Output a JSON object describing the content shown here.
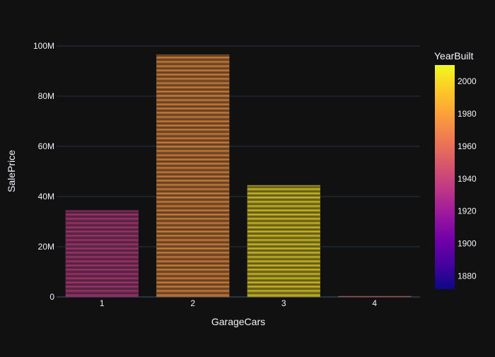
{
  "chart_data": {
    "type": "bar",
    "title": "",
    "xlabel": "GarageCars",
    "ylabel": "SalePrice",
    "categories": [
      "1",
      "2",
      "3",
      "4"
    ],
    "values": [
      34500000,
      96500000,
      44500000,
      300000
    ],
    "ylim": [
      0,
      100000000
    ],
    "yticks": [
      {
        "value": 0,
        "label": "0"
      },
      {
        "value": 20000000,
        "label": "20M"
      },
      {
        "value": 40000000,
        "label": "40M"
      },
      {
        "value": 60000000,
        "label": "60M"
      },
      {
        "value": 80000000,
        "label": "80M"
      },
      {
        "value": 100000000,
        "label": "100M"
      }
    ],
    "grid": true,
    "bar_mean_year_built": [
      1935,
      1975,
      2002,
      1955
    ],
    "colorbar": {
      "title": "YearBuilt",
      "range": [
        1872,
        2010
      ],
      "ticks": [
        1880,
        1900,
        1920,
        1940,
        1960,
        1980,
        2000
      ],
      "colors": [
        "#0d0887",
        "#46039f",
        "#7201a8",
        "#9c179e",
        "#bd3786",
        "#d8576b",
        "#ed7953",
        "#fb9f3a",
        "#fdca26",
        "#f0f921"
      ]
    }
  },
  "colors": {
    "background": "#111111",
    "grid": "#283442",
    "axis_text": "#f2f5fa",
    "tick_text": "#f2f5fa"
  }
}
